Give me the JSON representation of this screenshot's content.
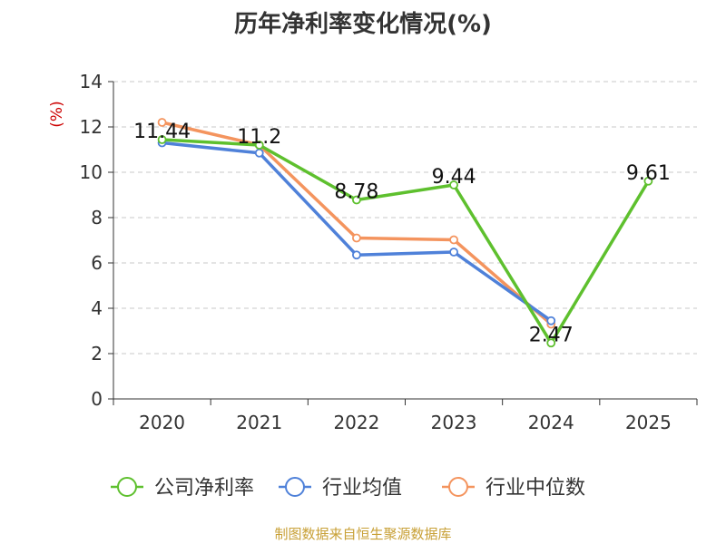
{
  "title": "历年净利率变化情况(%)",
  "footer": "制图数据来自恒生聚源数据库",
  "chart_data": {
    "type": "line",
    "title": "历年净利率变化情况(%)",
    "ylabel": "(%)",
    "xlabel": "",
    "categories": [
      "2020",
      "2021",
      "2022",
      "2023",
      "2024",
      "2025"
    ],
    "ylim": [
      0,
      14
    ],
    "yticks": [
      0,
      2,
      4,
      6,
      8,
      10,
      12,
      14
    ],
    "grid": true,
    "legend_position": "bottom",
    "series": [
      {
        "name": "公司净利率",
        "color": "#5ec02e",
        "values": [
          11.44,
          11.2,
          8.78,
          9.44,
          2.47,
          9.61
        ],
        "labels": [
          "11.44",
          "11.2",
          "8.78",
          "9.44",
          "2.47",
          "9.61"
        ]
      },
      {
        "name": "行业均值",
        "color": "#4f81d9",
        "values": [
          11.3,
          10.85,
          6.35,
          6.48,
          3.45,
          null
        ]
      },
      {
        "name": "行业中位数",
        "color": "#f4945e",
        "values": [
          12.2,
          11.2,
          7.1,
          7.02,
          3.3,
          null
        ]
      }
    ]
  }
}
